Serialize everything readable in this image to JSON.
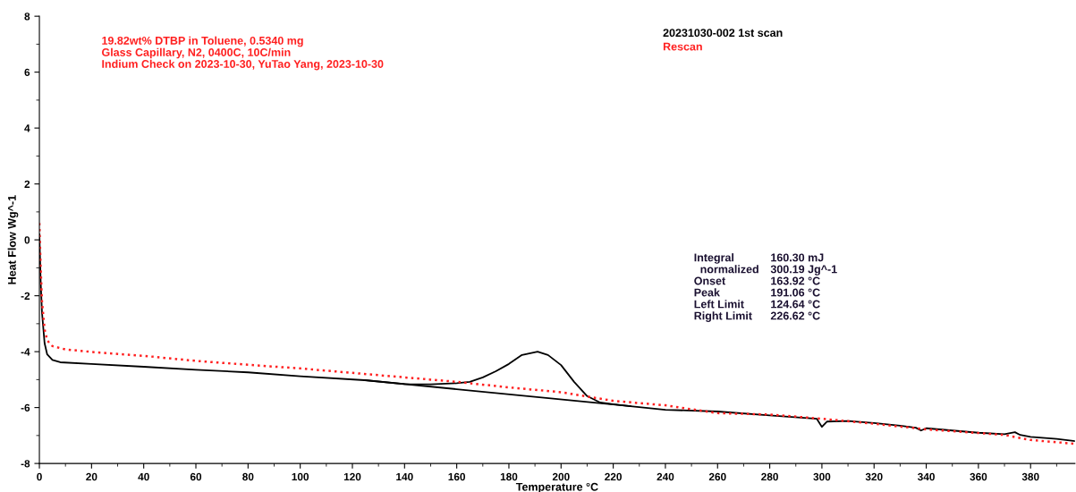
{
  "chart_data": {
    "type": "line",
    "xlabel": "Temperature °C",
    "ylabel": "Heat Flow Wg^-1",
    "xlim": [
      0,
      397
    ],
    "xticks": [
      0,
      20,
      40,
      60,
      80,
      100,
      120,
      140,
      160,
      180,
      200,
      220,
      240,
      260,
      280,
      300,
      320,
      340,
      360,
      380
    ],
    "ylim": [
      -8,
      8
    ],
    "yticks": [
      -8,
      -6,
      -4,
      -2,
      0,
      2,
      4,
      6,
      8
    ],
    "grid": false,
    "legend": "top",
    "series": [
      {
        "name": "20231030-002 1st scan",
        "color": "#000000",
        "line_style": "solid",
        "x": [
          0,
          0.5,
          1,
          2,
          3,
          5,
          8,
          20,
          40,
          60,
          80,
          100,
          124.64,
          140,
          150,
          160,
          165,
          170,
          175,
          180,
          185,
          191,
          195,
          200,
          205,
          210,
          215,
          220,
          226.62,
          240,
          260,
          280,
          298,
          300,
          302,
          310,
          320,
          330,
          336,
          338,
          340,
          350,
          360,
          370,
          374,
          376,
          380,
          390,
          397
        ],
        "values": [
          0.2,
          -1.5,
          -2.6,
          -3.7,
          -4.1,
          -4.3,
          -4.38,
          -4.44,
          -4.54,
          -4.65,
          -4.74,
          -4.88,
          -5.02,
          -5.16,
          -5.17,
          -5.13,
          -5.08,
          -4.92,
          -4.7,
          -4.44,
          -4.12,
          -4.0,
          -4.12,
          -4.48,
          -5.08,
          -5.59,
          -5.82,
          -5.88,
          -5.95,
          -6.08,
          -6.14,
          -6.28,
          -6.4,
          -6.69,
          -6.5,
          -6.48,
          -6.55,
          -6.65,
          -6.72,
          -6.82,
          -6.74,
          -6.82,
          -6.9,
          -6.95,
          -6.88,
          -6.98,
          -7.05,
          -7.12,
          -7.2
        ]
      },
      {
        "color": "#000000",
        "line_style": "solid",
        "x": [
          124.64,
          226.62
        ],
        "values": [
          -5.02,
          -5.95
        ]
      },
      {
        "name": "Rescan",
        "color": "#ff2020",
        "line_style": "dotted",
        "x": [
          0,
          0.5,
          1,
          2,
          3,
          5,
          10,
          20,
          40,
          60,
          80,
          100,
          120,
          140,
          160,
          180,
          200,
          220,
          240,
          260,
          280,
          300,
          320,
          340,
          360,
          370,
          380,
          390,
          397
        ],
        "values": [
          0.6,
          -1.0,
          -2.2,
          -3.2,
          -3.6,
          -3.8,
          -3.92,
          -4.01,
          -4.15,
          -4.33,
          -4.47,
          -4.6,
          -4.76,
          -4.92,
          -5.08,
          -5.28,
          -5.45,
          -5.76,
          -5.92,
          -6.2,
          -6.25,
          -6.4,
          -6.58,
          -6.78,
          -6.91,
          -6.98,
          -7.16,
          -7.24,
          -7.3
        ]
      }
    ],
    "annotations": [
      "19.82wt% DTBP in Toluene, 0.5340 mg\nGlass Capillary, N2, 0400C, 10C/min\nIndium Check on 2023-10-30, YuTao Yang, 2023-10-30",
      "Integral\n  normalized\nOnset\nPeak\nLeft Limit\nRight Limit",
      "160.30 mJ\n300.19 Jg^-1\n163.92 °C\n191.06 °C\n124.64 °C\n226.62 °C"
    ]
  }
}
